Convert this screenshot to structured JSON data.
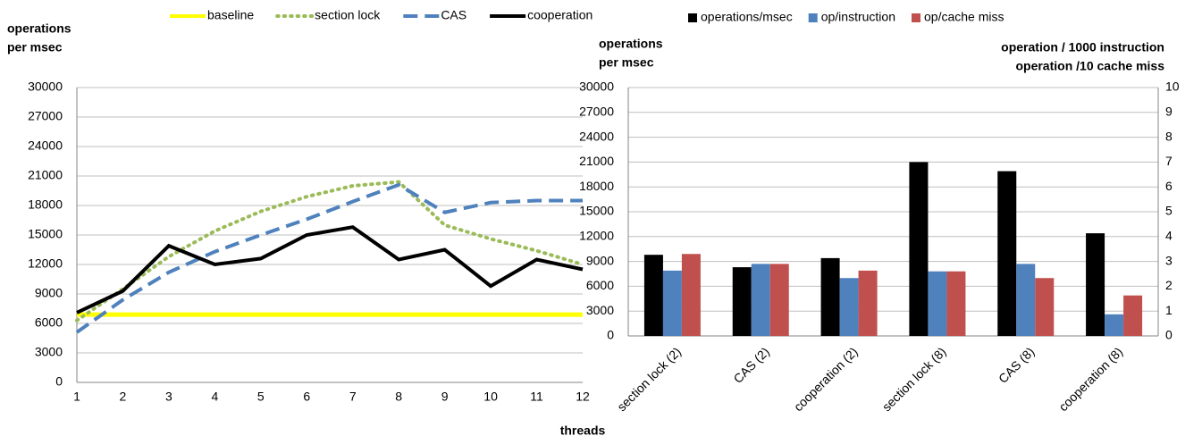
{
  "chart_data": [
    {
      "type": "line",
      "y_label": [
        "operations",
        "per msec"
      ],
      "x_label": "threads",
      "x": [
        1,
        2,
        3,
        4,
        5,
        6,
        7,
        8,
        9,
        10,
        11,
        12
      ],
      "xlim": [
        1,
        12
      ],
      "xticks": [
        1,
        2,
        3,
        4,
        5,
        6,
        7,
        8,
        9,
        10,
        11,
        12
      ],
      "ylim": [
        0,
        30000
      ],
      "yticks": [
        0,
        3000,
        6000,
        9000,
        12000,
        15000,
        18000,
        21000,
        24000,
        27000,
        30000
      ],
      "grid": true,
      "legend": "top",
      "series": [
        {
          "name": "baseline",
          "color": "#ffff00",
          "dash": "solid",
          "values": [
            6900,
            6900,
            6900,
            6900,
            6900,
            6900,
            6900,
            6900,
            6900,
            6900,
            6900,
            6900
          ]
        },
        {
          "name": "section lock",
          "color": "#9bbb59",
          "dash": "dotted",
          "values": [
            6300,
            9500,
            12800,
            15400,
            17400,
            18900,
            20000,
            20400,
            16000,
            14600,
            13400,
            12000
          ]
        },
        {
          "name": "CAS",
          "color": "#4f81bd",
          "dash": "dashed",
          "values": [
            5100,
            8400,
            11200,
            13300,
            15000,
            16600,
            18400,
            20100,
            17300,
            18300,
            18500,
            18500
          ]
        },
        {
          "name": "cooperation",
          "color": "#000000",
          "dash": "solid",
          "values": [
            7100,
            9300,
            13900,
            12000,
            12600,
            15000,
            15800,
            12500,
            13500,
            9800,
            12500,
            11500
          ]
        }
      ]
    },
    {
      "type": "bar",
      "y_label": [
        "operations",
        "per msec"
      ],
      "y2_label": [
        "operation / 1000 instruction",
        "operation /10 cache miss"
      ],
      "categories": [
        "section lock (2)",
        "CAS (2)",
        "cooperation (2)",
        "section lock (8)",
        "CAS (8)",
        "cooperation (8)"
      ],
      "ylim": [
        0,
        30000
      ],
      "yticks": [
        0,
        3000,
        6000,
        9000,
        12000,
        15000,
        18000,
        21000,
        24000,
        27000,
        30000
      ],
      "y2lim": [
        0,
        10
      ],
      "y2ticks": [
        0,
        1,
        2,
        3,
        4,
        5,
        6,
        7,
        8,
        9,
        10
      ],
      "grid": true,
      "legend": "top",
      "series": [
        {
          "name": "operations/msec",
          "color": "#000000",
          "values": [
            9800,
            8300,
            9400,
            21000,
            19900,
            12400
          ]
        },
        {
          "name": "op/instruction",
          "color": "#4f81bd",
          "axis": "y2",
          "values": [
            2.63,
            2.9,
            2.33,
            2.6,
            2.9,
            0.87
          ]
        },
        {
          "name": "op/cache miss",
          "color": "#c0504d",
          "axis": "y2",
          "values": [
            3.3,
            2.9,
            2.63,
            2.6,
            2.33,
            1.63
          ]
        }
      ]
    }
  ]
}
